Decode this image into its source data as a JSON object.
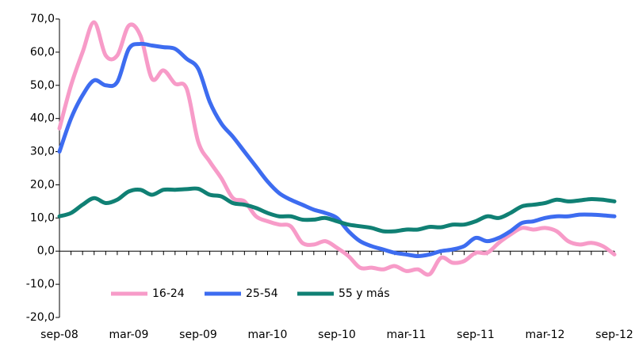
{
  "chart_data": {
    "type": "line",
    "categories": [
      "sep-08",
      null,
      null,
      null,
      null,
      null,
      "mar-09",
      null,
      null,
      null,
      null,
      null,
      "sep-09",
      null,
      null,
      null,
      null,
      null,
      "mar-10",
      null,
      null,
      null,
      null,
      null,
      "sep-10",
      null,
      null,
      null,
      null,
      null,
      "mar-11",
      null,
      null,
      null,
      null,
      null,
      "sep-11",
      null,
      null,
      null,
      null,
      null,
      "mar-12",
      null,
      null,
      null,
      null,
      null,
      "sep-12"
    ],
    "series": [
      {
        "name": "16-24",
        "color": "#f79bc8",
        "values": [
          37,
          50,
          60,
          69,
          59,
          59,
          68,
          65,
          52,
          54.5,
          50.5,
          49,
          33,
          27,
          22,
          16,
          15,
          10.5,
          9,
          8,
          7.5,
          2.5,
          2,
          3,
          1,
          -1.5,
          -5,
          -5,
          -5.5,
          -4.5,
          -6,
          -5.5,
          -7,
          -2,
          -3.5,
          -3,
          -0.5,
          -0.5,
          2.5,
          5,
          7,
          6.5,
          7,
          6,
          3,
          2,
          2.5,
          1.5,
          -1
        ]
      },
      {
        "name": "25-54",
        "color": "#3d6cf0",
        "values": [
          30,
          40,
          47,
          51.5,
          50,
          51,
          61,
          62.5,
          62,
          61.5,
          61,
          58,
          55,
          45,
          38.5,
          34.5,
          30,
          25.5,
          21,
          17.5,
          15.5,
          14,
          12.5,
          11.5,
          10,
          6,
          3,
          1.5,
          0.5,
          -0.5,
          -1,
          -1.5,
          -1,
          0,
          0.5,
          1.5,
          4,
          3,
          4,
          6,
          8.5,
          9,
          10,
          10.5,
          10.5,
          11,
          11,
          10.8,
          10.5
        ]
      },
      {
        "name": "55 y más",
        "color": "#108074",
        "values": [
          10.5,
          11.5,
          14,
          16,
          14.5,
          15.5,
          18,
          18.5,
          17,
          18.5,
          18.5,
          18.7,
          18.8,
          17,
          16.5,
          14.5,
          14,
          13,
          11.5,
          10.5,
          10.5,
          9.5,
          9.5,
          10,
          9,
          8,
          7.5,
          7,
          6,
          6,
          6.5,
          6.5,
          7.3,
          7.2,
          8,
          8,
          9,
          10.5,
          10,
          11.5,
          13.5,
          14,
          14.5,
          15.5,
          15,
          15.3,
          15.7,
          15.5,
          15
        ]
      }
    ],
    "ylim": [
      -20,
      70
    ],
    "yticks": [
      {
        "value": -20,
        "label": "-20,0"
      },
      {
        "value": -10,
        "label": "-10,0"
      },
      {
        "value": 0,
        "label": "0,0"
      },
      {
        "value": 10,
        "label": "10,0"
      },
      {
        "value": 20,
        "label": "20,0"
      },
      {
        "value": 30,
        "label": "30,0"
      },
      {
        "value": 40,
        "label": "40,0"
      },
      {
        "value": 50,
        "label": "50,0"
      },
      {
        "value": 60,
        "label": "60,0"
      },
      {
        "value": 70,
        "label": "70,0"
      }
    ],
    "grid": false,
    "legend": "bottom-left"
  }
}
